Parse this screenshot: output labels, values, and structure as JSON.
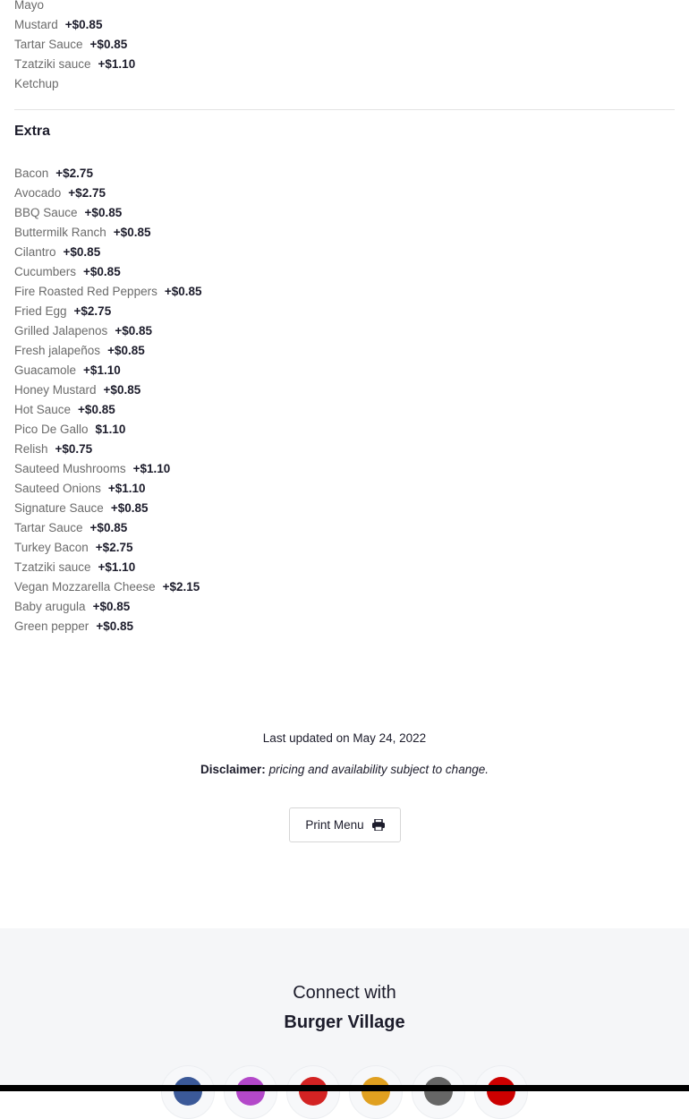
{
  "sauces": [
    {
      "name": "Mayo",
      "price": ""
    },
    {
      "name": "Mustard",
      "price": "+$0.85"
    },
    {
      "name": "Tartar Sauce",
      "price": "+$0.85"
    },
    {
      "name": "Tzatziki sauce",
      "price": "+$1.10"
    },
    {
      "name": "Ketchup",
      "price": ""
    }
  ],
  "extra": {
    "title": "Extra",
    "items": [
      {
        "name": "Bacon",
        "price": "+$2.75"
      },
      {
        "name": "Avocado",
        "price": "+$2.75"
      },
      {
        "name": "BBQ Sauce",
        "price": "+$0.85"
      },
      {
        "name": "Buttermilk Ranch",
        "price": "+$0.85"
      },
      {
        "name": "Cilantro",
        "price": "+$0.85"
      },
      {
        "name": "Cucumbers",
        "price": "+$0.85"
      },
      {
        "name": "Fire Roasted Red Peppers",
        "price": "+$0.85"
      },
      {
        "name": "Fried Egg",
        "price": "+$2.75"
      },
      {
        "name": "Grilled Jalapenos",
        "price": "+$0.85"
      },
      {
        "name": "Fresh jalapeños",
        "price": "+$0.85"
      },
      {
        "name": "Guacamole",
        "price": "+$1.10"
      },
      {
        "name": "Honey Mustard",
        "price": "+$0.85"
      },
      {
        "name": "Hot Sauce",
        "price": "+$0.85"
      },
      {
        "name": "Pico De Gallo",
        "price": "$1.10"
      },
      {
        "name": "Relish",
        "price": "+$0.75"
      },
      {
        "name": "Sauteed Mushrooms",
        "price": "+$1.10"
      },
      {
        "name": "Sauteed Onions",
        "price": "+$1.10"
      },
      {
        "name": "Signature Sauce",
        "price": "+$0.85"
      },
      {
        "name": "Tartar Sauce",
        "price": "+$0.85"
      },
      {
        "name": "Turkey Bacon",
        "price": "+$2.75"
      },
      {
        "name": "Tzatziki sauce",
        "price": "+$1.10"
      },
      {
        "name": "Vegan Mozzarella Cheese",
        "price": "+$2.15"
      },
      {
        "name": "Baby arugula",
        "price": "+$0.85"
      },
      {
        "name": "Green pepper",
        "price": "+$0.85"
      }
    ]
  },
  "footer_info": {
    "last_updated": "Last updated on May 24, 2022",
    "disclaimer_label": "Disclaimer:",
    "disclaimer_text": "pricing and availability subject to change.",
    "print_label": "Print Menu"
  },
  "connect": {
    "line1": "Connect with",
    "brand": "Burger Village"
  },
  "social": [
    {
      "icon": "facebook-icon",
      "color": "#3b5998"
    },
    {
      "icon": "instagram-icon",
      "color": "#b348c9"
    },
    {
      "icon": "yelp-icon",
      "color": "#d32323"
    },
    {
      "icon": "tripadvisor-icon",
      "color": "#e0a020"
    },
    {
      "icon": "website-globe-icon",
      "color": "#666666"
    },
    {
      "icon": "location-pin-icon",
      "color": "#cc0000"
    }
  ]
}
